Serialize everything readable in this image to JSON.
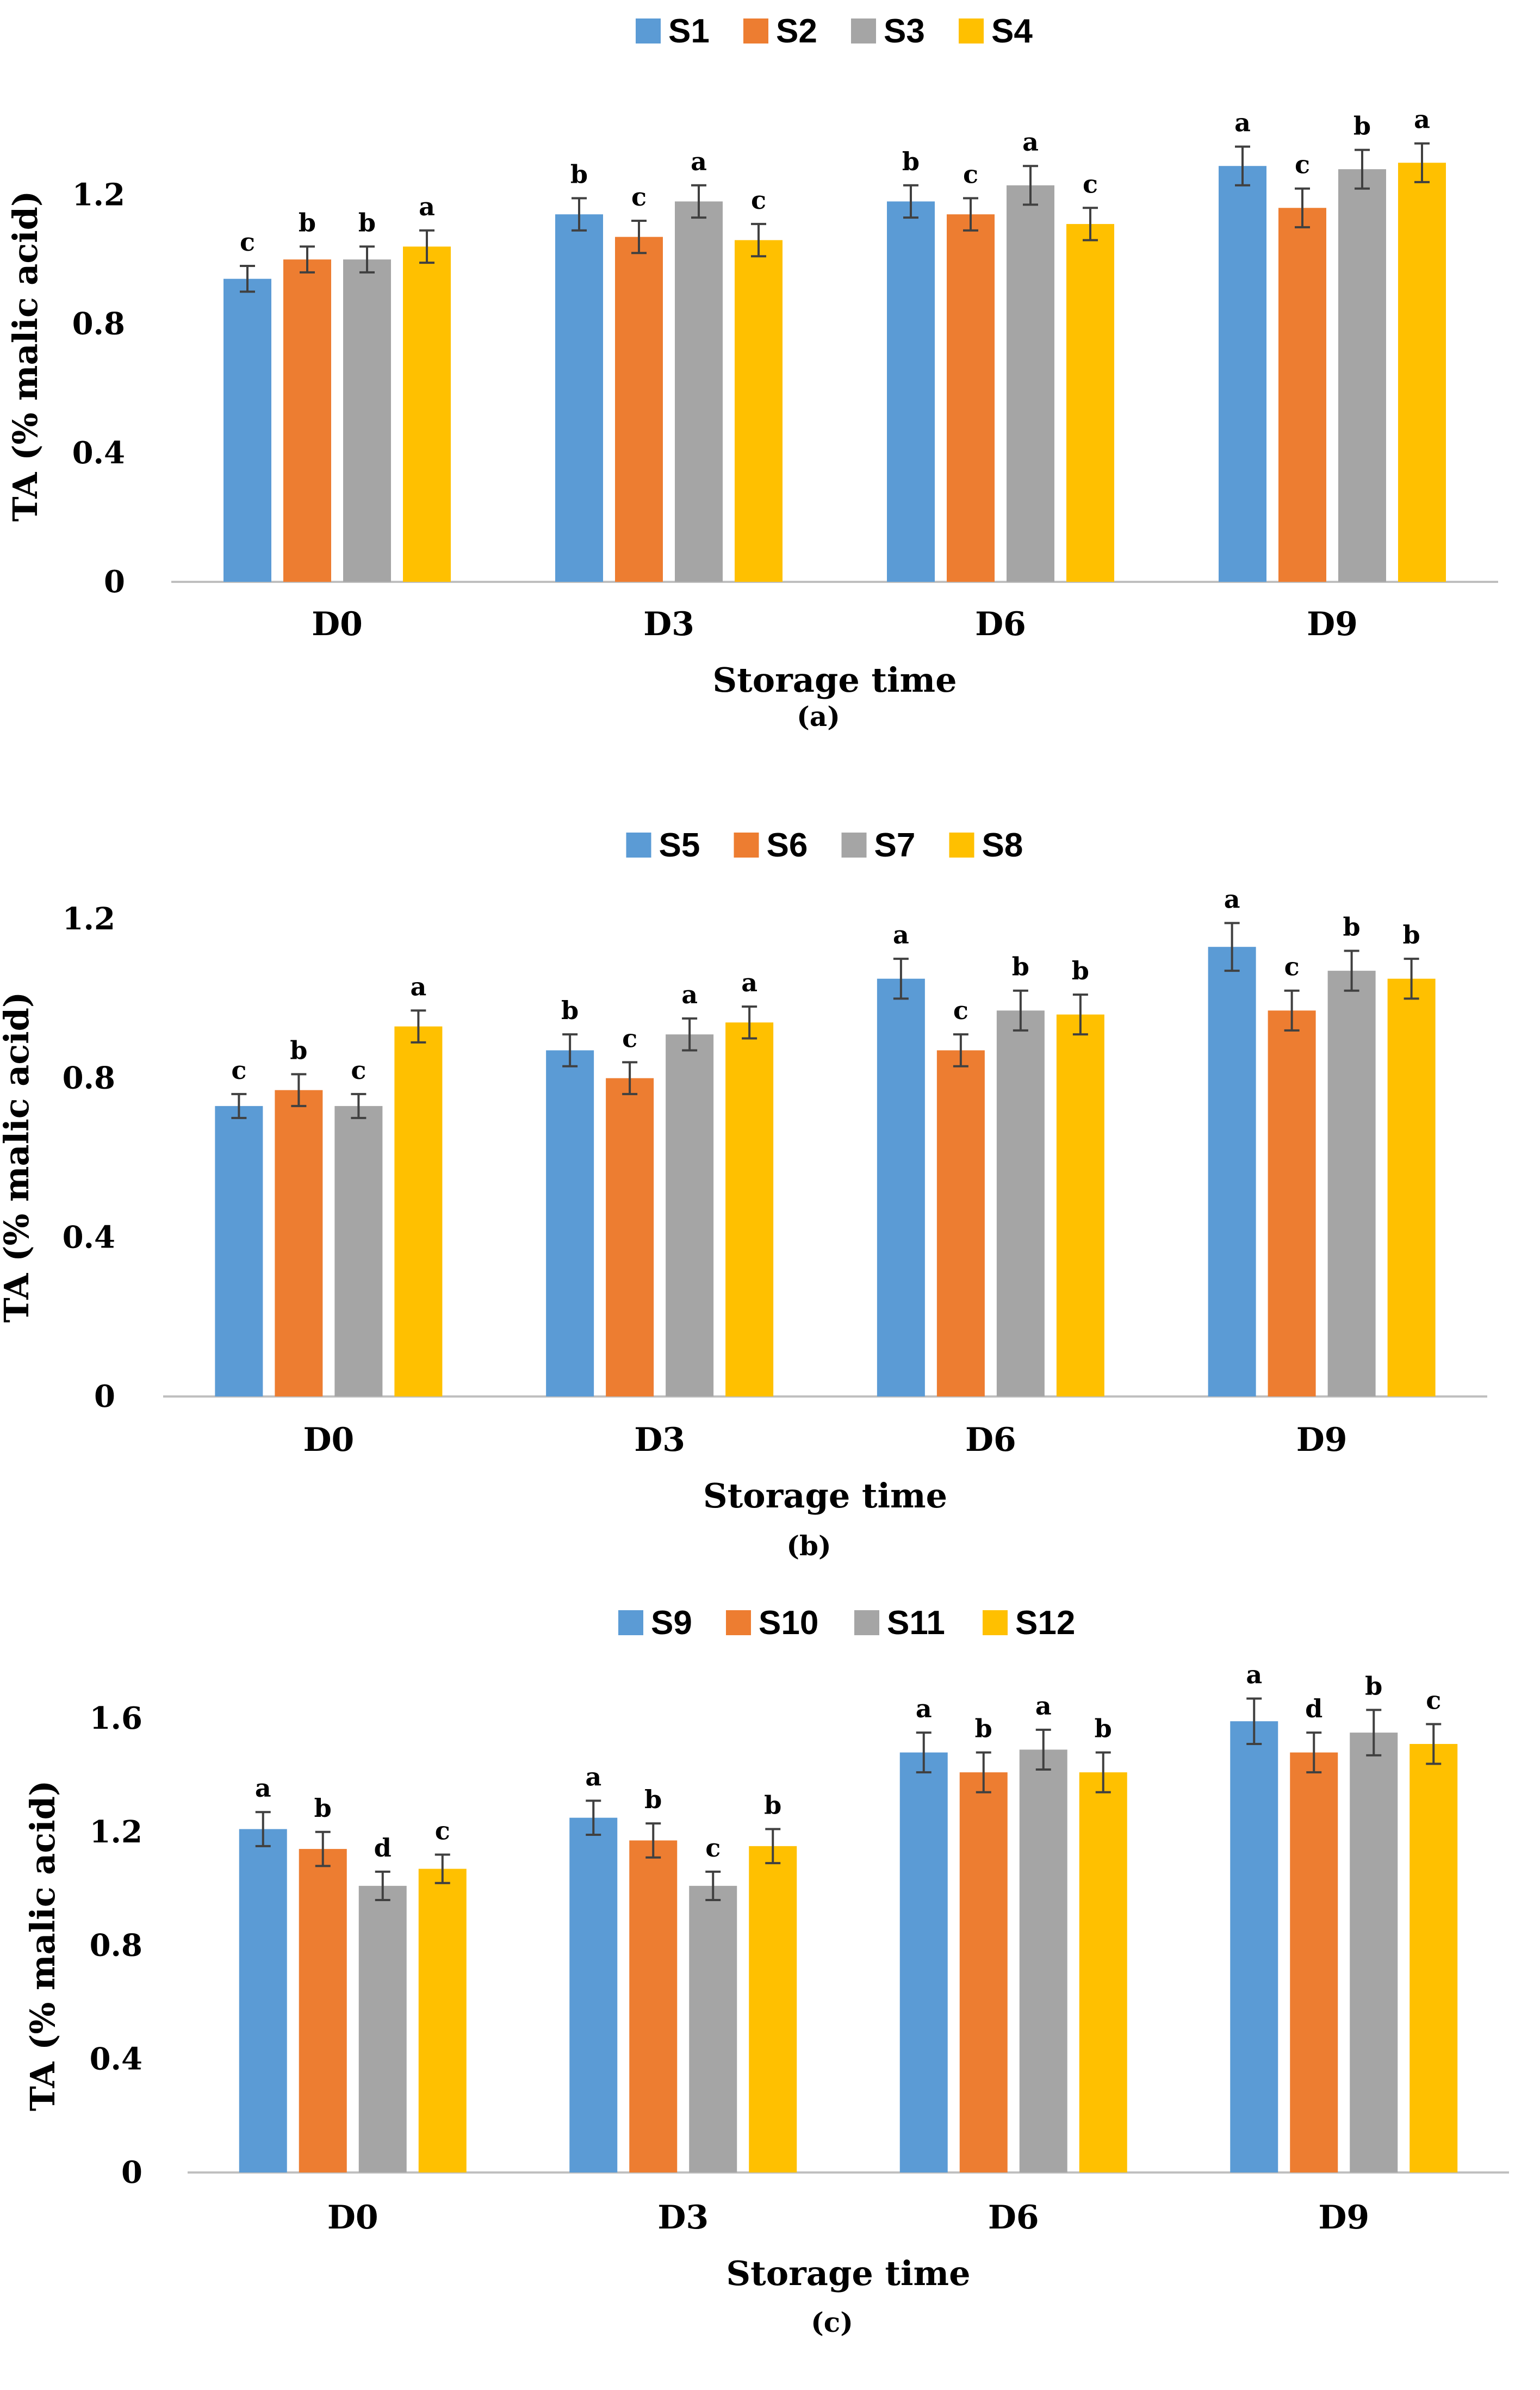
{
  "colors": [
    "#5B9BD5",
    "#ED7D31",
    "#A5A5A5",
    "#FFC000"
  ],
  "chart_data": [
    {
      "type": "bar",
      "panel_label": "(a)",
      "xlabel": "Storage time",
      "ylabel": "TA (% malic acid)",
      "ylim": [
        0,
        1.4
      ],
      "yticks": [
        "0",
        "0.4",
        "0.8",
        "1.2"
      ],
      "categories": [
        "D0",
        "D3",
        "D6",
        "D9"
      ],
      "series": [
        {
          "name": "S1",
          "values": [
            0.94,
            1.14,
            1.18,
            1.29
          ],
          "errors": [
            0.04,
            0.05,
            0.05,
            0.06
          ],
          "labels": [
            "c",
            "b",
            "b",
            "a"
          ]
        },
        {
          "name": "S2",
          "values": [
            1.0,
            1.07,
            1.14,
            1.16
          ],
          "errors": [
            0.04,
            0.05,
            0.05,
            0.06
          ],
          "labels": [
            "b",
            "c",
            "c",
            "c"
          ]
        },
        {
          "name": "S3",
          "values": [
            1.0,
            1.18,
            1.23,
            1.28
          ],
          "errors": [
            0.04,
            0.05,
            0.06,
            0.06
          ],
          "labels": [
            "b",
            "a",
            "a",
            "b"
          ]
        },
        {
          "name": "S4",
          "values": [
            1.04,
            1.06,
            1.11,
            1.3
          ],
          "errors": [
            0.05,
            0.05,
            0.05,
            0.06
          ],
          "labels": [
            "a",
            "c",
            "c",
            "a"
          ]
        }
      ]
    },
    {
      "type": "bar",
      "panel_label": "(b)",
      "xlabel": "Storage time",
      "ylabel": "TA (% malic acid)",
      "ylim": [
        0,
        1.2
      ],
      "yticks": [
        "0",
        "0.4",
        "0.8",
        "1.2"
      ],
      "categories": [
        "D0",
        "D3",
        "D6",
        "D9"
      ],
      "series": [
        {
          "name": "S5",
          "values": [
            0.73,
            0.87,
            1.05,
            1.13
          ],
          "errors": [
            0.03,
            0.04,
            0.05,
            0.06
          ],
          "labels": [
            "c",
            "b",
            "a",
            "a"
          ]
        },
        {
          "name": "S6",
          "values": [
            0.77,
            0.8,
            0.87,
            0.97
          ],
          "errors": [
            0.04,
            0.04,
            0.04,
            0.05
          ],
          "labels": [
            "b",
            "c",
            "c",
            "c"
          ]
        },
        {
          "name": "S7",
          "values": [
            0.73,
            0.91,
            0.97,
            1.07
          ],
          "errors": [
            0.03,
            0.04,
            0.05,
            0.05
          ],
          "labels": [
            "c",
            "a",
            "b",
            "b"
          ]
        },
        {
          "name": "S8",
          "values": [
            0.93,
            0.94,
            0.96,
            1.05
          ],
          "errors": [
            0.04,
            0.04,
            0.05,
            0.05
          ],
          "labels": [
            "a",
            "a",
            "b",
            "b"
          ]
        }
      ]
    },
    {
      "type": "bar",
      "panel_label": "(c)",
      "xlabel": "Storage time",
      "ylabel": "TA (% malic acid)",
      "ylim": [
        0,
        1.6
      ],
      "yticks": [
        "0",
        "0.4",
        "0.8",
        "1.2",
        "1.6"
      ],
      "categories": [
        "D0",
        "D3",
        "D6",
        "D9"
      ],
      "series": [
        {
          "name": "S9",
          "values": [
            1.21,
            1.25,
            1.48,
            1.59
          ],
          "errors": [
            0.06,
            0.06,
            0.07,
            0.08
          ],
          "labels": [
            "a",
            "a",
            "a",
            "a"
          ]
        },
        {
          "name": "S10",
          "values": [
            1.14,
            1.17,
            1.41,
            1.48
          ],
          "errors": [
            0.06,
            0.06,
            0.07,
            0.07
          ],
          "labels": [
            "b",
            "b",
            "b",
            "d"
          ]
        },
        {
          "name": "S11",
          "values": [
            1.01,
            1.01,
            1.49,
            1.55
          ],
          "errors": [
            0.05,
            0.05,
            0.07,
            0.08
          ],
          "labels": [
            "d",
            "c",
            "a",
            "b"
          ]
        },
        {
          "name": "S12",
          "values": [
            1.07,
            1.15,
            1.41,
            1.51
          ],
          "errors": [
            0.05,
            0.06,
            0.07,
            0.07
          ],
          "labels": [
            "c",
            "b",
            "b",
            "c"
          ]
        }
      ]
    }
  ]
}
